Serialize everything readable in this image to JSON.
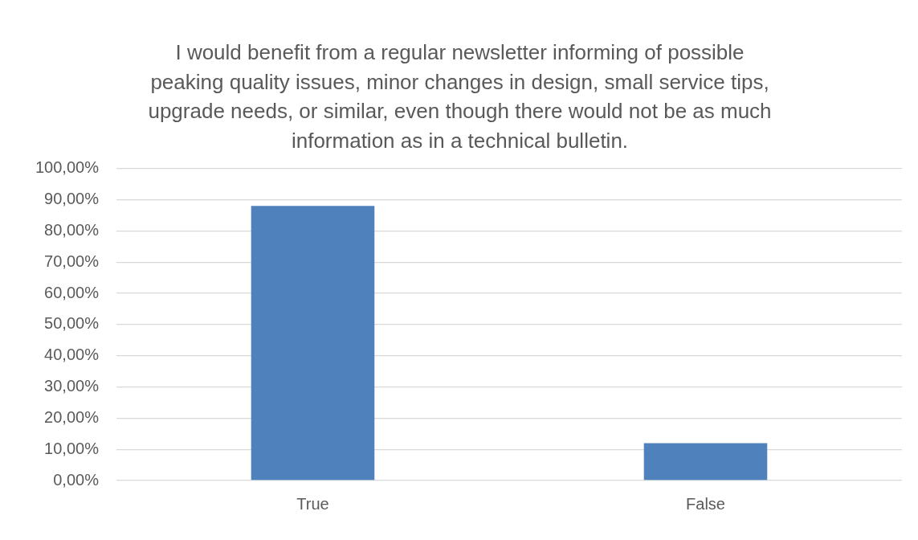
{
  "chart_data": {
    "type": "bar",
    "title": "I would benefit from a regular newsletter informing of possible peaking quality issues, minor changes in design, small service tips, upgrade needs, or similar, even though there would not be as much information as in a technical bulletin.",
    "categories": [
      "True",
      "False"
    ],
    "values": [
      88,
      12
    ],
    "color": "#4f81bd",
    "ylim": [
      0,
      100
    ],
    "yticks": [
      {
        "value": 0,
        "label": "0,00%"
      },
      {
        "value": 10,
        "label": "10,00%"
      },
      {
        "value": 20,
        "label": "20,00%"
      },
      {
        "value": 30,
        "label": "30,00%"
      },
      {
        "value": 40,
        "label": "40,00%"
      },
      {
        "value": 50,
        "label": "50,00%"
      },
      {
        "value": 60,
        "label": "60,00%"
      },
      {
        "value": 70,
        "label": "70,00%"
      },
      {
        "value": 80,
        "label": "80,00%"
      },
      {
        "value": 90,
        "label": "90,00%"
      },
      {
        "value": 100,
        "label": "100,00%"
      }
    ],
    "grid": "y"
  }
}
